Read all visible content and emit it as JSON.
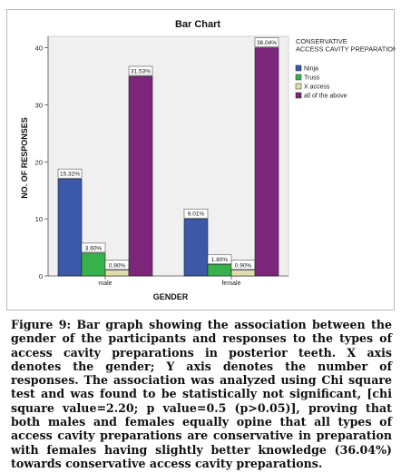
{
  "chart_data": {
    "type": "bar",
    "title": "Bar Chart",
    "xlabel": "GENDER",
    "ylabel": "NO. OF RESPONSES",
    "categories": [
      "male",
      "female"
    ],
    "ylim": [
      0,
      42
    ],
    "yticks": [
      0,
      10,
      20,
      30,
      40
    ],
    "grid": false,
    "legend_position": "right",
    "legend_title": "CONSERVATIVE ACCESS CAVITY PREPARATION",
    "series": [
      {
        "name": "Ninja",
        "color": "#3b58a9",
        "values": [
          17,
          10
        ],
        "labels": [
          "15.32%",
          "9.01%"
        ]
      },
      {
        "name": "Truss",
        "color": "#35b34a",
        "values": [
          4,
          2
        ],
        "labels": [
          "3.60%",
          "1.80%"
        ]
      },
      {
        "name": "X access",
        "color": "#e0dfaa",
        "values": [
          1,
          1
        ],
        "labels": [
          "0.90%",
          "0.90%"
        ]
      },
      {
        "name": "all of the above",
        "color": "#7b267b",
        "values": [
          35,
          40
        ],
        "labels": [
          "31.53%",
          "36.04%"
        ]
      }
    ]
  },
  "caption": "Figure 9: Bar graph showing the association between the gender of the participants and responses to the types of access cavity preparations in posterior teeth. X axis denotes the gender; Y axis denotes the number of responses. The association was analyzed using Chi square test and was found to be statistically not significant, [chi square value=2.20; p value=0.5 (p>0.05)], proving that both males and females equally opine that all types of access cavity preparations are conservative in preparation with females having slightly better knowledge (36.04%) towards conservative access cavity preparations."
}
